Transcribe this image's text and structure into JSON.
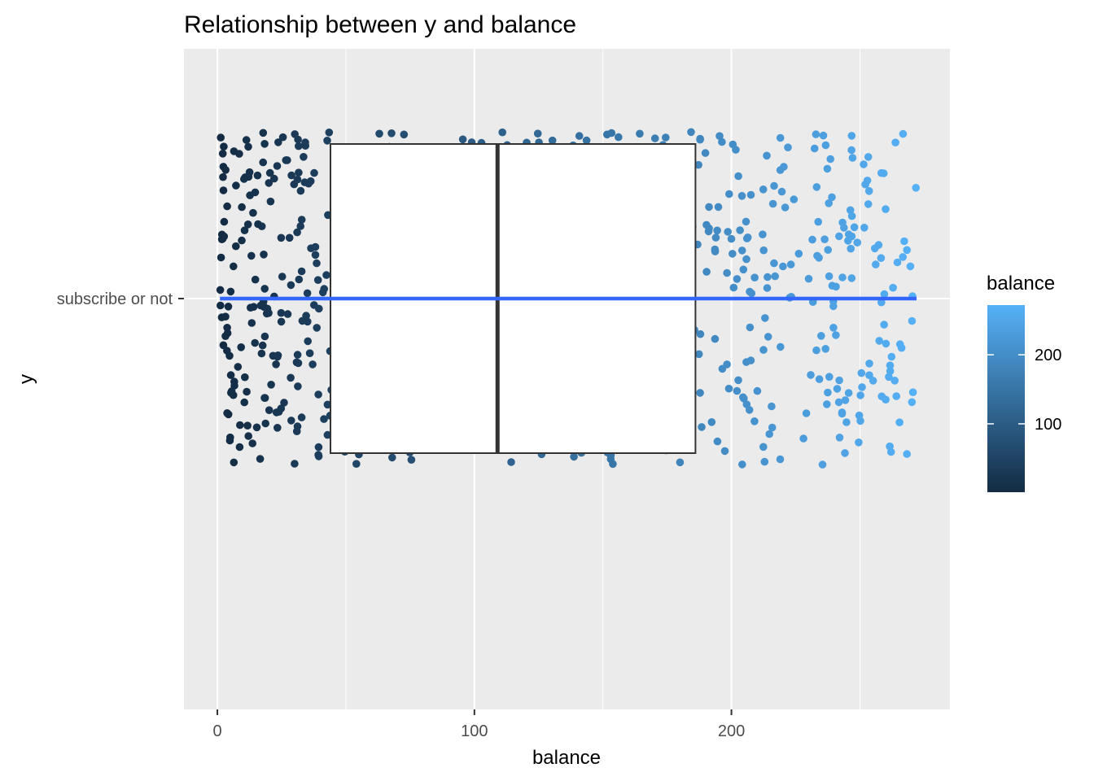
{
  "chart_data": {
    "type": "scatter",
    "title": "Relationship between y and balance",
    "xlabel": "balance",
    "ylabel": "y",
    "xlim": [
      -13,
      285
    ],
    "x_ticks": [
      {
        "value": 0,
        "label": "0"
      },
      {
        "value": 100,
        "label": "100"
      },
      {
        "value": 200,
        "label": "200"
      }
    ],
    "y_categories": [
      "subscribe or not"
    ],
    "grid": true,
    "panel_background": "#ebebeb",
    "point_color_low": "#132b43",
    "point_color_high": "#56b1f7",
    "boxplot": {
      "category": "subscribe or not",
      "q1": 44,
      "median": 109,
      "q3": 186,
      "fill": "#ffffff",
      "stroke": "#333333"
    },
    "trend_line": {
      "x_start": 1,
      "x_end": 272,
      "y": "subscribe or not",
      "color": "#3366ff"
    },
    "points": {
      "x_min": 1,
      "x_max": 272,
      "count": 800,
      "jitter": true,
      "color_by": "balance"
    },
    "legend": {
      "title": "balance",
      "placement": "right",
      "min": 1,
      "max": 272,
      "ticks": [
        {
          "value": 100,
          "label": "100"
        },
        {
          "value": 200,
          "label": "200"
        }
      ]
    }
  }
}
